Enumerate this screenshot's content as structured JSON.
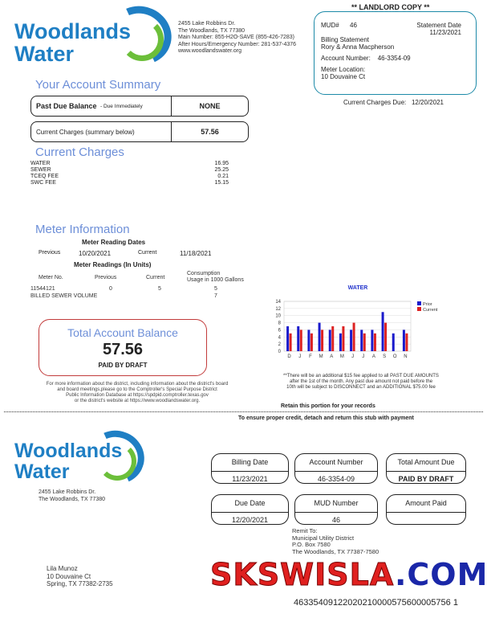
{
  "company": {
    "logo": "Woodlands Water",
    "address1": "2455 Lake Robbins Dr.",
    "address2": "The Woodlands, TX 77380",
    "main": "Main Number: 855-H2O-SAVE (855-426-7283)",
    "after": "After Hours/Emergency Number: 281-537-4376",
    "web": "www.woodlandswater.org"
  },
  "copy_label": "** LANDLORD COPY **",
  "infobox": {
    "mud_label": "MUD#",
    "mud": "46",
    "stmt_label": "Statement Date",
    "stmt_date": "11/23/2021",
    "billing_label": "Billing Statement",
    "name": "Rory & Anna Macpherson",
    "acct_label": "Account Number:",
    "acct": "46-3354-09",
    "loc_label": "Meter Location:",
    "loc": "10 Douvaine Ct"
  },
  "due": {
    "label": "Current Charges Due:",
    "date": "12/20/2021"
  },
  "summary": {
    "title": "Your Account Summary",
    "past_due_label": "Past Due Balance",
    "past_due_note": "- Due Immediately",
    "past_due": "NONE",
    "current_label": "Current Charges (summary below)",
    "current": "57.56"
  },
  "charges": {
    "title": "Current Charges",
    "items": [
      {
        "name": "WATER",
        "amount": "16.95"
      },
      {
        "name": "SEWER",
        "amount": "25.25"
      },
      {
        "name": "TCEQ FEE",
        "amount": "0.21"
      },
      {
        "name": "SWC FEE",
        "amount": "15.15"
      }
    ]
  },
  "meter": {
    "title": "Meter Information",
    "dates_title": "Meter Reading Dates",
    "prev_label": "Previous",
    "prev_date": "10/20/2021",
    "cur_label": "Current",
    "cur_date": "11/18/2021",
    "readings_title": "Meter Readings (In Units)",
    "cols": [
      "Meter No.",
      "Previous",
      "Current",
      "Consumption",
      "Usage in 1000 Gallons"
    ],
    "row": [
      "11544121",
      "0",
      "5",
      "5"
    ],
    "sewer_label": "BILLED SEWER VOLUME",
    "sewer": "7"
  },
  "total": {
    "title": "Total Account Balance",
    "amount": "57.56",
    "status": "PAID BY DRAFT"
  },
  "info_text": [
    "For more information about the district, including information about the district's board",
    "and board meetings,please go to the Comptroller's Special Purpose District",
    "Public Information Database at https://spdpid.comptroller.texas.gov",
    "or the district's website at https://www.woodlandswater.org."
  ],
  "late_text": [
    "**There will be an additional $15 fee applied to all PAST DUE AMOUNTS",
    "after the 1st of the month.  Any past due amount not paid before the",
    "10th will be subject to DISCONNECT and an ADDITIONAL $75.00 fee"
  ],
  "retain": "Retain this portion for your records",
  "detach": "To ensure proper credit, detach and return this stub with payment",
  "chart_data": {
    "type": "bar",
    "title": "WATER",
    "categories": [
      "D",
      "J",
      "F",
      "M",
      "A",
      "M",
      "J",
      "J",
      "A",
      "S",
      "O",
      "N"
    ],
    "ylim": [
      0,
      14
    ],
    "yticks": [
      0,
      2,
      4,
      6,
      8,
      10,
      12,
      14
    ],
    "grid": true,
    "legend": "right",
    "series": [
      {
        "name": "Prior",
        "color": "#1a1acc",
        "values": [
          7,
          7,
          6,
          8,
          6,
          5,
          6,
          6,
          6,
          11,
          5,
          6
        ]
      },
      {
        "name": "Current",
        "color": "#dd2222",
        "values": [
          5,
          6,
          5,
          6,
          7,
          7,
          8,
          5,
          5,
          8,
          0,
          5
        ]
      }
    ]
  },
  "stub": {
    "address1": "2455 Lake Robbins Dr.",
    "address2": "The Woodlands, TX 77380",
    "billing_date_label": "Billing Date",
    "billing_date": "11/23/2021",
    "acct_label": "Account Number",
    "acct": "46-3354-09",
    "total_label": "Total Amount Due",
    "total": "PAID BY DRAFT",
    "due_label": "Due Date",
    "due": "12/20/2021",
    "mud_label": "MUD Number",
    "mud": "46",
    "paid_label": "Amount Paid",
    "paid": "",
    "remit_label": "Remit To:",
    "remit1": "Municipal Utility District",
    "remit2": "P.O. Box 7580",
    "remit3": "The Woodlands, TX 77387-7580",
    "cust_name": "Lila Munoz",
    "cust1": "10 Douvaine Ct",
    "cust2": "Spring, TX 77382-2735",
    "scanline": "46335409122020210000575600005756 1"
  },
  "watermark": "SKSWISLA.COM"
}
